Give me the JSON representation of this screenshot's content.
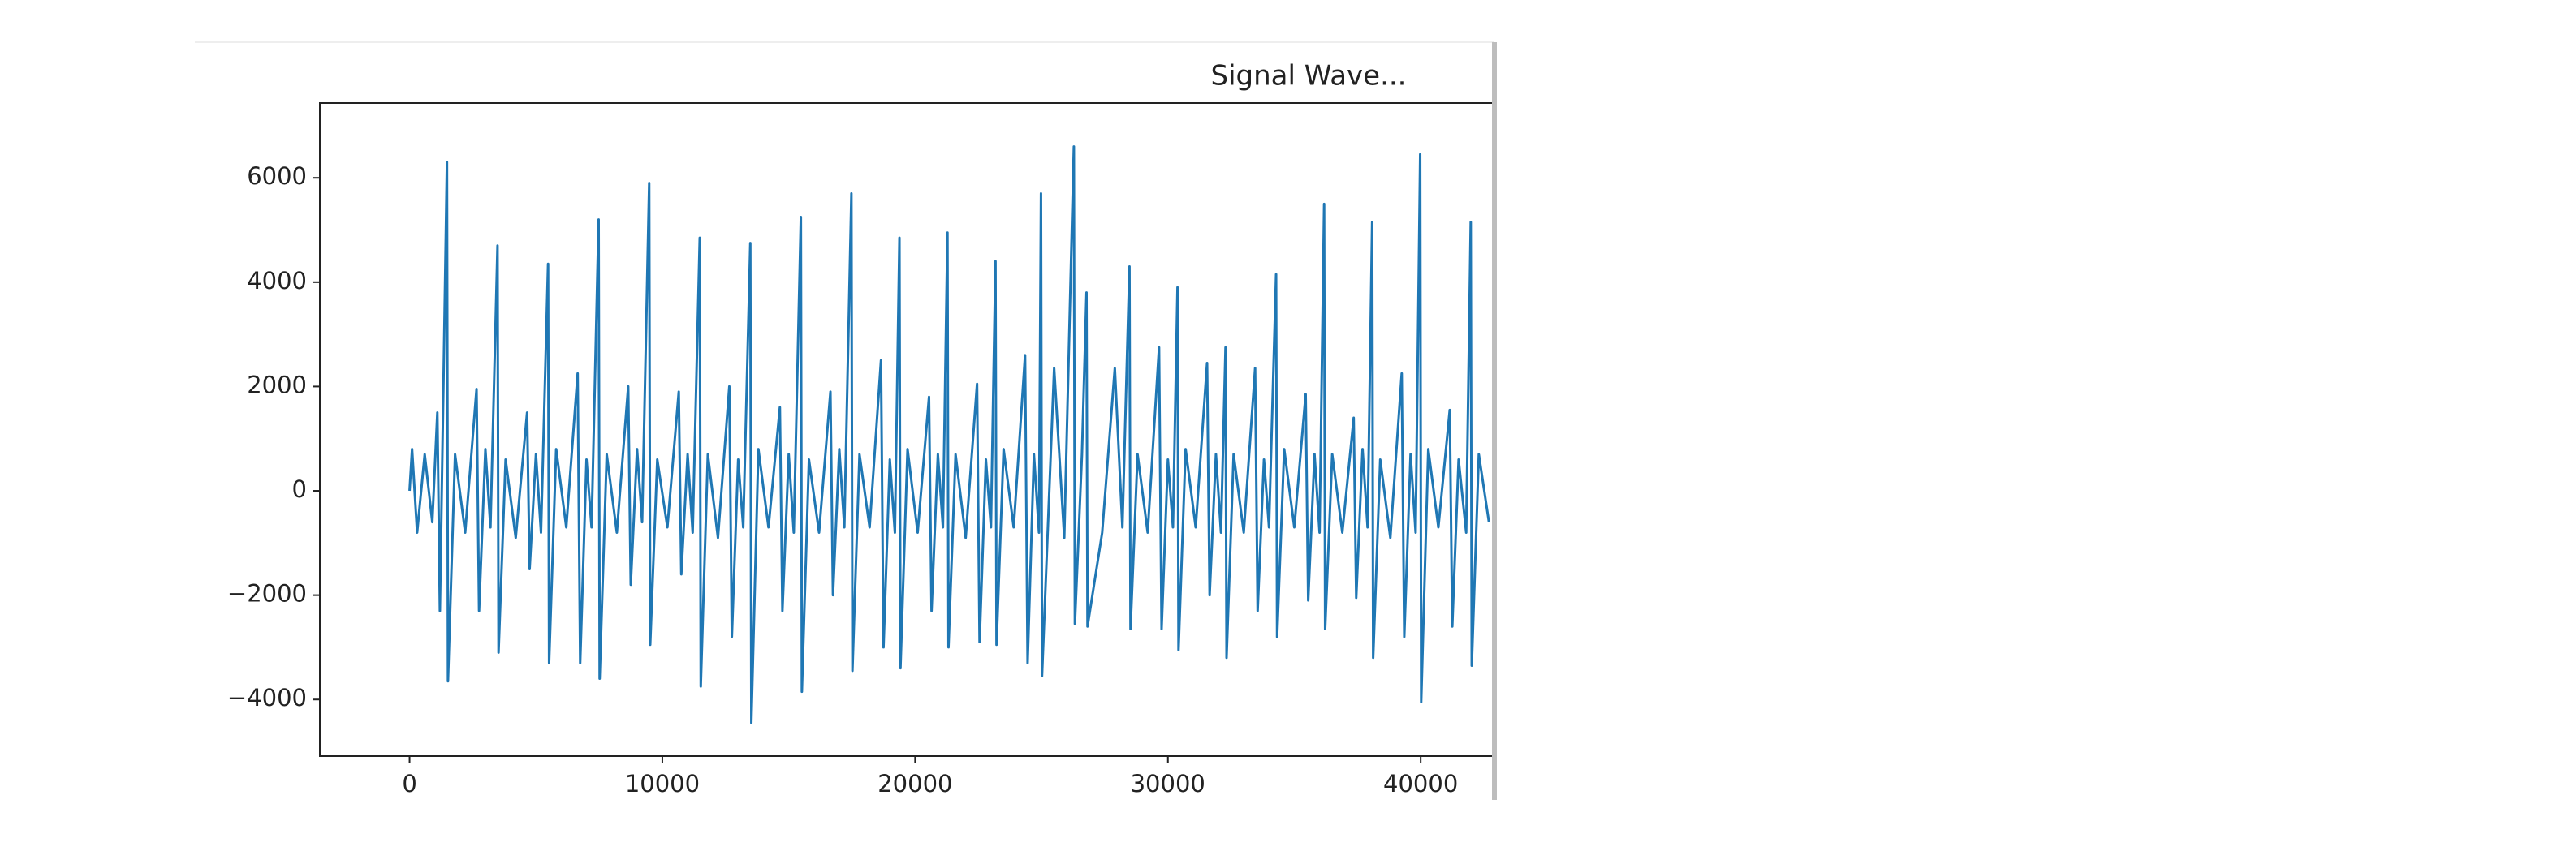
{
  "chart_data": {
    "type": "line",
    "title": "Signal Wave...",
    "color": "#1f77b4",
    "xlim": [
      -3550,
      46000
    ],
    "ylim": [
      -5085,
      7434
    ],
    "xticks": [
      0,
      10000,
      20000,
      30000,
      40000
    ],
    "yticks": [
      {
        "value": -4000,
        "label": "−4000"
      },
      {
        "value": -2000,
        "label": "−2000"
      },
      0,
      2000,
      4000,
      6000
    ],
    "x": [
      0,
      100,
      300,
      600,
      900,
      1100,
      1200,
      1480,
      1520,
      1800,
      2200,
      2650,
      2750,
      3000,
      3200,
      3480,
      3520,
      3800,
      4200,
      4650,
      4750,
      5000,
      5200,
      5480,
      5520,
      5800,
      6200,
      6650,
      6750,
      7000,
      7200,
      7480,
      7520,
      7800,
      8200,
      8650,
      8750,
      9000,
      9200,
      9480,
      9520,
      9800,
      10200,
      10650,
      10750,
      11000,
      11200,
      11480,
      11520,
      11800,
      12200,
      12650,
      12750,
      13000,
      13200,
      13480,
      13520,
      13800,
      14200,
      14650,
      14750,
      15000,
      15200,
      15480,
      15520,
      15800,
      16200,
      16650,
      16750,
      17000,
      17200,
      17480,
      17520,
      17800,
      18200,
      18650,
      18750,
      19000,
      19200,
      19380,
      19420,
      19700,
      20100,
      20550,
      20650,
      20900,
      21100,
      21280,
      21320,
      21600,
      22000,
      22450,
      22550,
      22800,
      23000,
      23180,
      23220,
      23500,
      23900,
      24350,
      24450,
      24700,
      24900,
      24980,
      25020,
      25500,
      25900,
      26280,
      26320,
      26600,
      26780,
      26820,
      27400,
      27900,
      28200,
      28480,
      28520,
      28800,
      29200,
      29650,
      29750,
      30000,
      30200,
      30380,
      30420,
      30700,
      31100,
      31550,
      31650,
      31900,
      32100,
      32280,
      32320,
      32600,
      33000,
      33450,
      33550,
      33800,
      34000,
      34280,
      34320,
      34600,
      35000,
      35450,
      35550,
      35800,
      36000,
      36180,
      36220,
      36500,
      36900,
      37350,
      37450,
      37700,
      37900,
      38080,
      38120,
      38400,
      38800,
      39250,
      39350,
      39600,
      39800,
      39980,
      40020,
      40300,
      40700,
      41150,
      41250,
      41500,
      41800,
      41980,
      42020,
      42300,
      42700
    ],
    "values": [
      0,
      800,
      -800,
      700,
      -600,
      1500,
      -2300,
      6300,
      -3650,
      700,
      -800,
      1950,
      -2300,
      800,
      -700,
      4700,
      -3100,
      600,
      -900,
      1500,
      -1500,
      700,
      -800,
      4350,
      -3300,
      800,
      -700,
      2250,
      -3300,
      600,
      -700,
      5200,
      -3600,
      700,
      -800,
      2000,
      -1800,
      800,
      -600,
      5900,
      -2950,
      600,
      -700,
      1900,
      -1600,
      700,
      -800,
      4850,
      -3750,
      700,
      -900,
      2000,
      -2800,
      600,
      -700,
      4750,
      -4450,
      800,
      -700,
      1600,
      -2300,
      700,
      -800,
      5250,
      -3850,
      600,
      -800,
      1900,
      -2000,
      800,
      -700,
      5700,
      -3450,
      700,
      -700,
      2500,
      -3000,
      600,
      -800,
      4850,
      -3400,
      800,
      -800,
      1800,
      -2300,
      700,
      -700,
      4950,
      -3000,
      700,
      -900,
      2050,
      -2900,
      600,
      -700,
      4400,
      -2950,
      800,
      -700,
      2600,
      -3300,
      700,
      -800,
      5700,
      -3550,
      2350,
      -900,
      6600,
      -2550,
      700,
      3800,
      -2600,
      -800,
      2350,
      -700,
      4300,
      -2650,
      700,
      -800,
      2750,
      -2650,
      600,
      -700,
      3900,
      -3050,
      800,
      -700,
      2450,
      -2000,
      700,
      -800,
      2750,
      -3200,
      700,
      -800,
      2350,
      -2300,
      600,
      -700,
      4150,
      -2800,
      800,
      -700,
      1850,
      -2100,
      700,
      -800,
      5500,
      -2650,
      700,
      -800,
      1400,
      -2050,
      800,
      -700,
      5150,
      -3200,
      600,
      -900,
      2250,
      -2800,
      700,
      -800,
      6450,
      -4050,
      800,
      -700,
      1550,
      -2600,
      600,
      -800,
      5150,
      -3350,
      700,
      -600
    ]
  }
}
